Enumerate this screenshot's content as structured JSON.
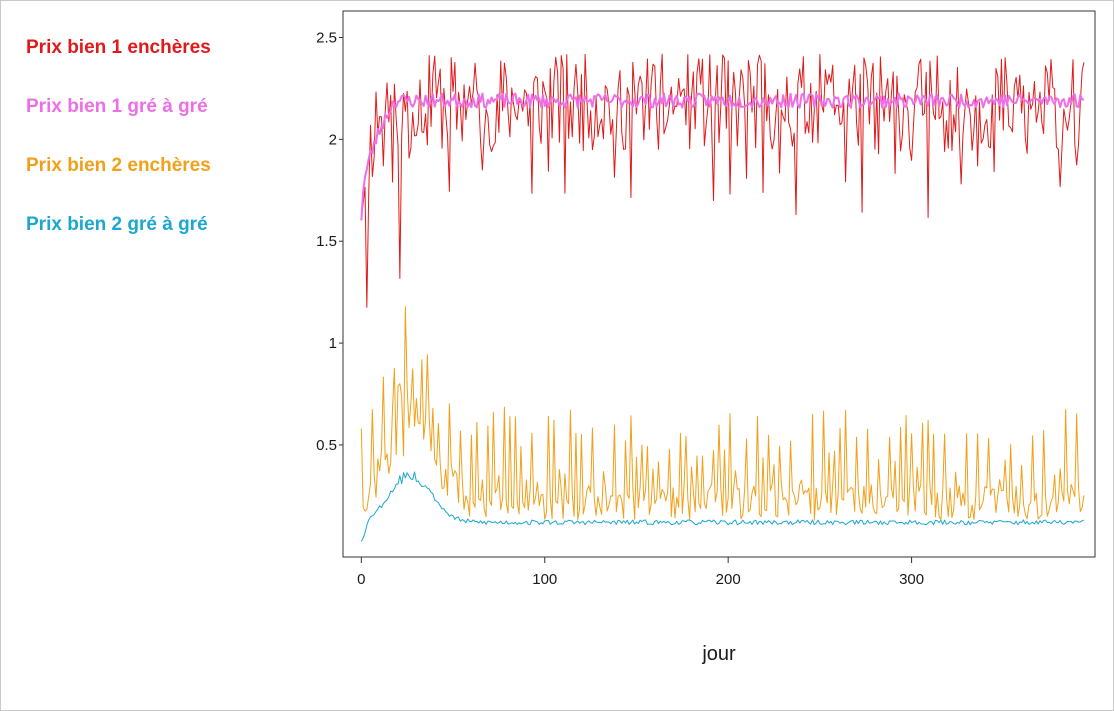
{
  "chart_data": {
    "type": "line",
    "title": "",
    "xlabel": "jour",
    "ylabel": "",
    "xlim": [
      -10,
      400
    ],
    "ylim": [
      -0.05,
      2.63
    ],
    "x_ticks": [
      0,
      100,
      200,
      300
    ],
    "x_tick_labels": [
      "0",
      "100",
      "200",
      "300"
    ],
    "y_ticks": [
      0.5,
      1,
      1.5,
      2,
      2.5
    ],
    "y_tick_labels": [
      "0.5",
      "1",
      "1.5",
      "2",
      "2.5"
    ],
    "grid": false,
    "legend_position": "left-outside",
    "n_days": 395,
    "series": [
      {
        "name": "Prix bien 1 enchères",
        "color": "#e01a1a",
        "stroke_width": 1,
        "pattern": {
          "base_start": 1.75,
          "base_end": 2.18,
          "settle_days": 10,
          "spread": 0.24,
          "dip_depth": 0.55,
          "dip_every": 9,
          "seed": 11
        }
      },
      {
        "name": "Prix bien 1 gré à gré",
        "color": "#ee6ee8",
        "stroke_width": 2,
        "pattern": {
          "base_start": 1.62,
          "base_end": 2.19,
          "settle_days": 18,
          "spread": 0.035,
          "dip_depth": 0,
          "dip_every": 0,
          "seed": 23
        }
      },
      {
        "name": "Prix bien 2 enchères",
        "color": "#f0a01a",
        "stroke_width": 1,
        "pattern": {
          "base": 0.22,
          "spread": 0.09,
          "spike_height": 0.6,
          "spike_every": 6,
          "hump_center": 27,
          "hump_width": 12,
          "hump_height": 0.45,
          "seed": 37
        }
      },
      {
        "name": "Prix bien 2 gré à gré",
        "color": "#1aa8d2",
        "stroke_width": 1,
        "pattern": {
          "base": 0.12,
          "spread": 0.012,
          "hump_center": 27,
          "hump_width": 11,
          "hump_height": 0.24,
          "start": 0.02,
          "seed": 53
        }
      }
    ]
  }
}
